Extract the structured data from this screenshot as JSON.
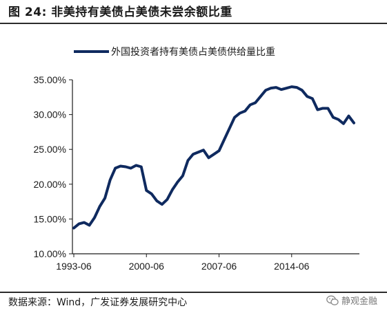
{
  "header": {
    "title": "图 24:  非美持有美债占美债未尝余额比重"
  },
  "footer": {
    "source": "数据来源：Wind，广发证券发展研究中心",
    "watermark": "静观金融"
  },
  "chart_data": {
    "type": "line",
    "title": "",
    "xlabel": "",
    "ylabel": "",
    "ylim": [
      10,
      35
    ],
    "y_ticks": [
      "10.00%",
      "15.00%",
      "20.00%",
      "25.00%",
      "30.00%",
      "35.00%"
    ],
    "x_ticks": [
      "1993-06",
      "2000-06",
      "2007-06",
      "2014-06"
    ],
    "legend_position": "top-left",
    "series": [
      {
        "name": "外国投资者持有美债占美债供给量比重",
        "color": "#0f2a5f",
        "x": [
          "1993-06",
          "1993-12",
          "1994-06",
          "1994-12",
          "1995-06",
          "1995-12",
          "1996-06",
          "1996-12",
          "1997-06",
          "1997-12",
          "1998-06",
          "1998-12",
          "1999-06",
          "1999-12",
          "2000-06",
          "2000-12",
          "2001-06",
          "2001-12",
          "2002-06",
          "2002-12",
          "2003-06",
          "2003-12",
          "2004-06",
          "2004-12",
          "2005-06",
          "2005-12",
          "2006-06",
          "2006-12",
          "2007-06",
          "2007-12",
          "2008-06",
          "2008-12",
          "2009-06",
          "2009-12",
          "2010-06",
          "2010-12",
          "2011-06",
          "2011-12",
          "2012-06",
          "2012-12",
          "2013-06",
          "2013-12",
          "2014-06",
          "2014-12",
          "2015-06",
          "2015-12",
          "2016-06",
          "2016-12",
          "2017-06",
          "2017-12",
          "2018-06",
          "2018-12",
          "2019-06",
          "2019-12",
          "2020-06"
        ],
        "values": [
          13.7,
          14.3,
          14.5,
          14.1,
          15.2,
          16.8,
          18.0,
          20.6,
          22.3,
          22.6,
          22.5,
          22.3,
          22.7,
          22.5,
          19.1,
          18.6,
          17.6,
          17.1,
          17.8,
          19.2,
          20.3,
          21.2,
          23.4,
          24.3,
          24.6,
          24.9,
          23.8,
          24.3,
          24.8,
          26.4,
          28.0,
          29.6,
          30.2,
          30.5,
          31.4,
          31.7,
          32.6,
          33.5,
          33.8,
          33.9,
          33.6,
          33.8,
          34.0,
          33.9,
          33.5,
          32.6,
          32.3,
          30.7,
          30.9,
          30.9,
          29.6,
          29.3,
          28.7,
          29.8,
          28.8
        ]
      }
    ]
  }
}
